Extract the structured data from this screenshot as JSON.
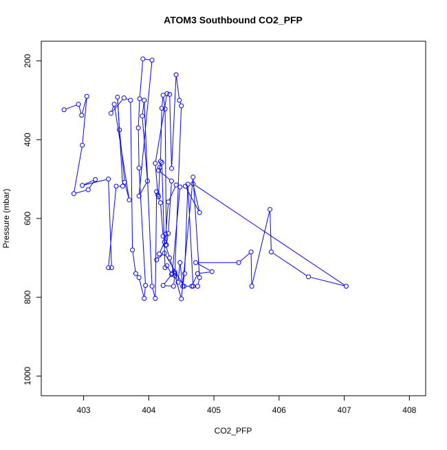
{
  "chart_data": {
    "type": "scatter",
    "title": "ATOM3 Southbound CO2_PFP",
    "xlabel": "CO2_PFP",
    "ylabel": "Pressure (mbar)",
    "xlim": [
      402.35,
      408.25
    ],
    "ylim": [
      1050,
      150
    ],
    "y_inverted": true,
    "x_ticks": [
      403,
      404,
      405,
      406,
      407,
      408
    ],
    "y_ticks": [
      200,
      400,
      600,
      800,
      1000
    ],
    "grid": false,
    "colors": {
      "series": "#0000ff",
      "axis": "#000000",
      "background": "#ffffff"
    },
    "series": [
      {
        "style": "lines+open-circles",
        "x": [
          402.7,
          402.92,
          402.97,
          403.05,
          402.98,
          402.85,
          403.07,
          403.18,
          402.98,
          403.38,
          403.43,
          403.38,
          403.5,
          403.6,
          403.52,
          403.55,
          403.63,
          403.7,
          403.47,
          403.42,
          403.62,
          403.72,
          403.75,
          403.8,
          403.85,
          403.93,
          403.95,
          403.85,
          403.84,
          403.86,
          403.91,
          404.05,
          403.85,
          403.98,
          403.9,
          403.93,
          404.05,
          404.1,
          404.12,
          404.15,
          404.17,
          404.18,
          404.2,
          404.22,
          404.25,
          404.27,
          404.3,
          404.35,
          404.15,
          404.2,
          404.25,
          404.28,
          404.35,
          404.4,
          404.45,
          404.48,
          404.52,
          404.55,
          404.6,
          404.68,
          404.75,
          404.78,
          404.68,
          404.5,
          404.4,
          404.32,
          404.26,
          404.22,
          404.18,
          404.14,
          404.1,
          404.28,
          404.32,
          404.35,
          404.42,
          404.47,
          404.5,
          404.4,
          404.38,
          404.22,
          404.36,
          404.48,
          404.42,
          404.3,
          404.26,
          404.24,
          404.16,
          404.12,
          404.24,
          404.54,
          404.66,
          404.75,
          404.97,
          404.72,
          405.38,
          405.57,
          405.58,
          405.86,
          405.88,
          406.45,
          407.03,
          404.68,
          404.78,
          404.56
        ],
        "y": [
          324,
          310,
          338,
          290,
          414,
          537,
          527,
          501,
          516,
          500,
          725,
          725,
          518,
          518,
          292,
          375,
          508,
          553,
          310,
          333,
          294,
          300,
          680,
          740,
          750,
          803,
          770,
          472,
          370,
          296,
          195,
          198,
          543,
          505,
          340,
          300,
          772,
          803,
          532,
          545,
          470,
          455,
          320,
          287,
          322,
          667,
          638,
          505,
          478,
          458,
          725,
          720,
          742,
          736,
          762,
          712,
          772,
          740,
          513,
          772,
          772,
          750,
          495,
          804,
          745,
          700,
          668,
          645,
          560,
          540,
          460,
          283,
          285,
          473,
          235,
          300,
          314,
          740,
          772,
          770,
          740,
          520,
          515,
          558,
          640,
          660,
          690,
          705,
          688,
          772,
          772,
          740,
          735,
          712,
          712,
          685,
          772,
          577,
          685,
          748,
          772,
          512,
          585,
          518
        ]
      }
    ]
  }
}
